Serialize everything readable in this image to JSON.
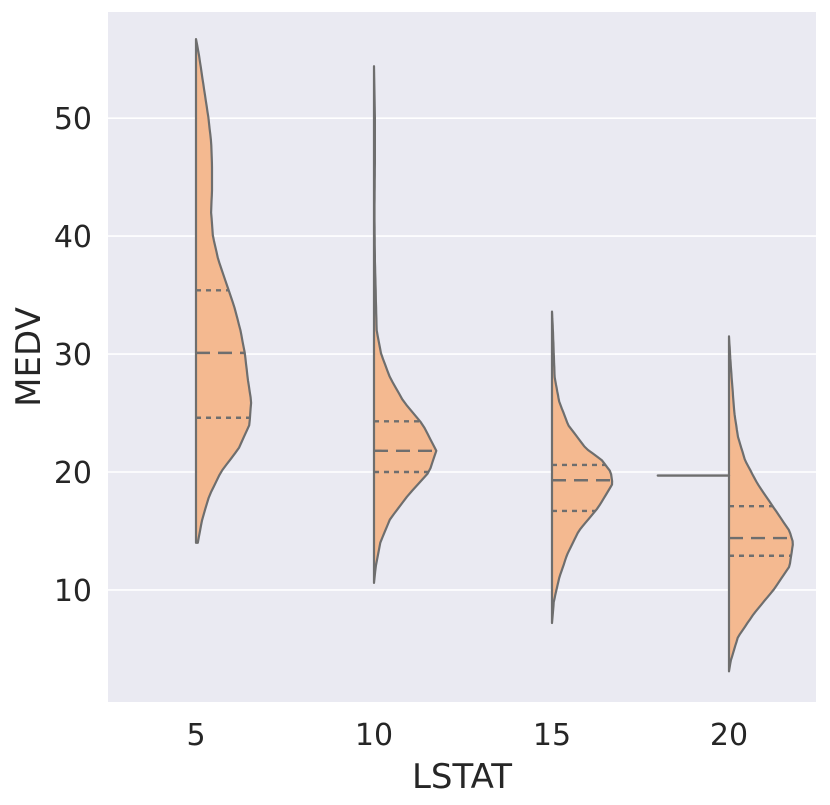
{
  "chart_data": {
    "type": "violin",
    "split": true,
    "xlabel": "LSTAT",
    "ylabel": "MEDV",
    "ylim": [
      0.5,
      59
    ],
    "yticks": [
      10,
      20,
      30,
      40,
      50
    ],
    "categories": [
      "5",
      "10",
      "15",
      "20"
    ],
    "colors": {
      "background": "#eaeaf2",
      "grid": "#ffffff",
      "fill": "#f4b990",
      "line": "#6e6e6e",
      "text": "#262626"
    },
    "violins": [
      {
        "category": "5",
        "side": "right",
        "min": 14,
        "max": 56.7,
        "quartiles": [
          24.6,
          30.1,
          35.4
        ],
        "density": [
          [
            14,
            0.02
          ],
          [
            16,
            0.07
          ],
          [
            18,
            0.15
          ],
          [
            20,
            0.28
          ],
          [
            22,
            0.48
          ],
          [
            24,
            0.6
          ],
          [
            26,
            0.62
          ],
          [
            28,
            0.58
          ],
          [
            30,
            0.55
          ],
          [
            32,
            0.5
          ],
          [
            34,
            0.43
          ],
          [
            36,
            0.34
          ],
          [
            38,
            0.25
          ],
          [
            40,
            0.19
          ],
          [
            42,
            0.17
          ],
          [
            44,
            0.18
          ],
          [
            46,
            0.18
          ],
          [
            48,
            0.17
          ],
          [
            50,
            0.14
          ],
          [
            52,
            0.1
          ],
          [
            54,
            0.06
          ],
          [
            55.5,
            0.03
          ],
          [
            56.7,
            0.0
          ]
        ]
      },
      {
        "category": "10",
        "side": "right",
        "min": 10.6,
        "max": 54.4,
        "quartiles": [
          20.0,
          21.8,
          24.3
        ],
        "density": [
          [
            10.6,
            0.0
          ],
          [
            12,
            0.02
          ],
          [
            14,
            0.07
          ],
          [
            16,
            0.18
          ],
          [
            18,
            0.38
          ],
          [
            20,
            0.62
          ],
          [
            21.8,
            0.7
          ],
          [
            24,
            0.55
          ],
          [
            26,
            0.33
          ],
          [
            28,
            0.18
          ],
          [
            30,
            0.08
          ],
          [
            32,
            0.03
          ],
          [
            35,
            0.02
          ],
          [
            38,
            0.01
          ],
          [
            42,
            0.005
          ],
          [
            46,
            0.01
          ],
          [
            50,
            0.01
          ],
          [
            54.4,
            0.0
          ]
        ]
      },
      {
        "category": "15",
        "side": "right",
        "min": 7.2,
        "max": 33.6,
        "quartiles": [
          16.7,
          19.3,
          20.6
        ],
        "density": [
          [
            7.2,
            0.0
          ],
          [
            9,
            0.02
          ],
          [
            11,
            0.08
          ],
          [
            13,
            0.17
          ],
          [
            15,
            0.3
          ],
          [
            17,
            0.52
          ],
          [
            19,
            0.68
          ],
          [
            20,
            0.66
          ],
          [
            21,
            0.56
          ],
          [
            22,
            0.38
          ],
          [
            24,
            0.18
          ],
          [
            26,
            0.08
          ],
          [
            28,
            0.03
          ],
          [
            30,
            0.02
          ],
          [
            32,
            0.01
          ],
          [
            33.6,
            0.0
          ]
        ]
      },
      {
        "category": "20",
        "side": "right",
        "min": 3.1,
        "max": 31.5,
        "quartiles": [
          12.9,
          14.4,
          17.1
        ],
        "density": [
          [
            3.1,
            0.0
          ],
          [
            4,
            0.02
          ],
          [
            6,
            0.1
          ],
          [
            8,
            0.28
          ],
          [
            10,
            0.5
          ],
          [
            12,
            0.68
          ],
          [
            14,
            0.72
          ],
          [
            15,
            0.68
          ],
          [
            17,
            0.5
          ],
          [
            19,
            0.32
          ],
          [
            21,
            0.18
          ],
          [
            23,
            0.1
          ],
          [
            25,
            0.06
          ],
          [
            27,
            0.04
          ],
          [
            29,
            0.02
          ],
          [
            31.5,
            0.0
          ]
        ]
      }
    ],
    "lines": [
      {
        "category": "20",
        "side": "left",
        "y": 19.7,
        "width": 0.8
      }
    ]
  }
}
